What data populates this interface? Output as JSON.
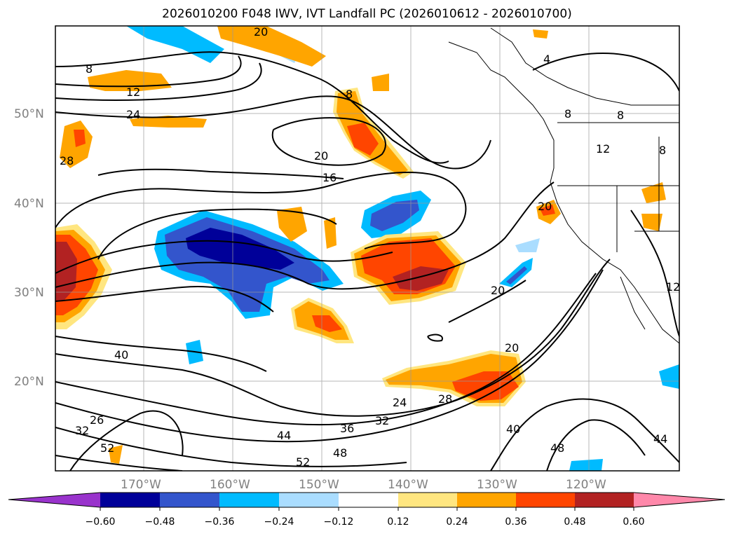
{
  "title": "2026010200 F048 IWV, IVT Landfall PC (2026010612 - 2026010700)",
  "map": {
    "lat_labels": [
      "50°N",
      "40°N",
      "30°N",
      "20°N"
    ],
    "lon_labels": [
      "170°W",
      "160°W",
      "150°W",
      "140°W",
      "130°W",
      "120°W"
    ],
    "contour_labels": [
      "8",
      "12",
      "24",
      "28",
      "20",
      "16",
      "8",
      "4",
      "8",
      "8",
      "12",
      "20",
      "20",
      "20",
      "20",
      "8",
      "40",
      "24",
      "28",
      "32",
      "36",
      "44",
      "48",
      "52",
      "40",
      "48",
      "44",
      "52",
      "32",
      "26",
      "12"
    ]
  },
  "colorbar": {
    "ticks": [
      "−0.60",
      "−0.48",
      "−0.36",
      "−0.24",
      "−0.12",
      "0.12",
      "0.24",
      "0.36",
      "0.48",
      "0.60"
    ],
    "colors": [
      "#9933cc",
      "#000099",
      "#3355cc",
      "#00bbff",
      "#aaddff",
      "#ffffff",
      "#ffe680",
      "#ffa500",
      "#ff4500",
      "#b22222",
      "#ff88aa"
    ]
  }
}
